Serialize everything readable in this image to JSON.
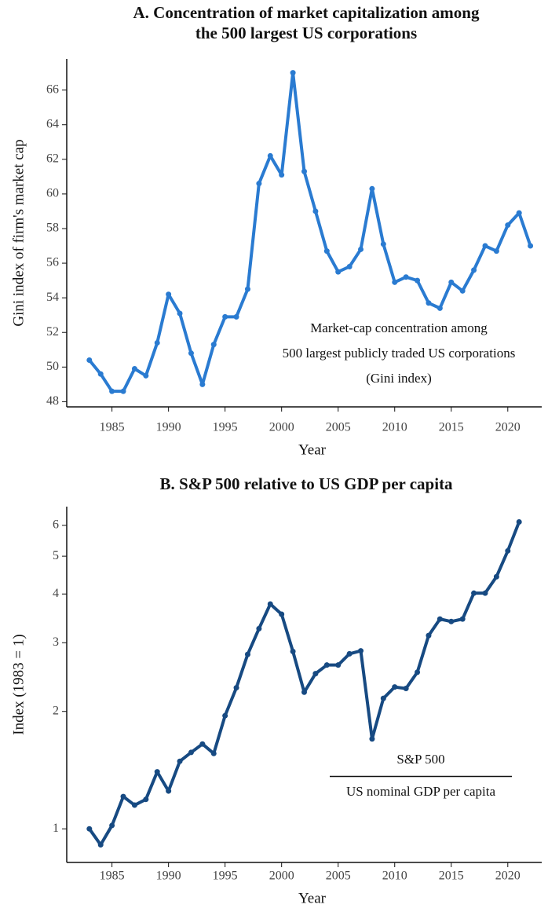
{
  "chart_data": [
    {
      "type": "line",
      "title": [
        "A.  Concentration of market capitalization among",
        "the 500 largest US corporations"
      ],
      "xlabel": "Year",
      "ylabel": "Gini index of firm's market cap",
      "annotation": [
        "Market-cap concentration among",
        "500 largest publicly traded US corporations",
        "(Gini index)"
      ],
      "color": "#2a7bd1",
      "x": [
        1983,
        1984,
        1985,
        1986,
        1987,
        1988,
        1989,
        1990,
        1991,
        1992,
        1993,
        1994,
        1995,
        1996,
        1997,
        1998,
        1999,
        2000,
        2001,
        2002,
        2003,
        2004,
        2005,
        2006,
        2007,
        2008,
        2009,
        2010,
        2011,
        2012,
        2013,
        2014,
        2015,
        2016,
        2017,
        2018,
        2019,
        2020,
        2021,
        2022
      ],
      "values": [
        50.4,
        49.6,
        48.6,
        48.6,
        49.9,
        49.5,
        51.4,
        54.2,
        53.1,
        50.8,
        49.0,
        51.3,
        52.9,
        52.9,
        54.5,
        60.6,
        62.2,
        61.1,
        67.0,
        61.3,
        59.0,
        56.7,
        55.5,
        55.8,
        56.8,
        60.3,
        57.1,
        54.9,
        55.2,
        55.0,
        53.7,
        53.4,
        54.9,
        54.4,
        55.6,
        57.0,
        56.7,
        58.2,
        58.9,
        57.0
      ],
      "xlim": [
        1981,
        2023
      ],
      "xticks": [
        1985,
        1990,
        1995,
        2000,
        2005,
        2010,
        2015,
        2020
      ],
      "ylim": [
        47.7,
        67.8
      ],
      "yticks": [
        48,
        50,
        52,
        54,
        56,
        58,
        60,
        62,
        64,
        66
      ],
      "log_y": false
    },
    {
      "type": "line",
      "title": [
        "B. S&P 500 relative to US GDP per capita"
      ],
      "xlabel": "Year",
      "ylabel": "Index (1983 = 1)",
      "annotation": [
        "S&P 500",
        "US nominal GDP per capita"
      ],
      "color": "#174a82",
      "x": [
        1983,
        1984,
        1985,
        1986,
        1987,
        1988,
        1989,
        1990,
        1991,
        1992,
        1993,
        1994,
        1995,
        1996,
        1997,
        1998,
        1999,
        2000,
        2001,
        2002,
        2003,
        2004,
        2005,
        2006,
        2007,
        2008,
        2009,
        2010,
        2011,
        2012,
        2013,
        2014,
        2015,
        2016,
        2017,
        2018,
        2019,
        2020,
        2021
      ],
      "values": [
        1.0,
        0.91,
        1.02,
        1.21,
        1.15,
        1.19,
        1.4,
        1.25,
        1.49,
        1.57,
        1.65,
        1.56,
        1.95,
        2.3,
        2.8,
        3.26,
        3.77,
        3.55,
        2.85,
        2.24,
        2.5,
        2.63,
        2.63,
        2.81,
        2.86,
        1.7,
        2.16,
        2.31,
        2.29,
        2.52,
        3.13,
        3.45,
        3.4,
        3.45,
        4.02,
        4.02,
        4.43,
        5.16,
        6.12
      ],
      "xlim": [
        1981,
        2023
      ],
      "xticks": [
        1985,
        1990,
        1995,
        2000,
        2005,
        2010,
        2015,
        2020
      ],
      "ylim": [
        0.82,
        6.7
      ],
      "yticks": [
        1,
        2,
        3,
        4,
        5,
        6
      ],
      "log_y": true
    }
  ]
}
